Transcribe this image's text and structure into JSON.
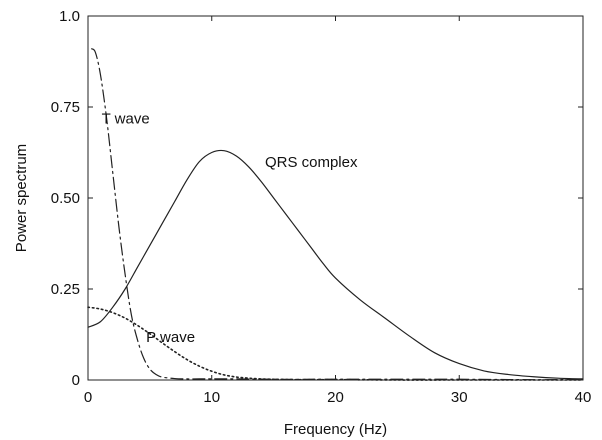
{
  "chart_data": {
    "type": "line",
    "title": "",
    "xlabel": "Frequency (Hz)",
    "ylabel": "Power spectrum",
    "xlim": [
      0,
      40
    ],
    "ylim": [
      0,
      1.0
    ],
    "x_ticks": [
      0,
      10,
      20,
      30,
      40
    ],
    "x_tick_labels": [
      "0",
      "10",
      "20",
      "30",
      "40"
    ],
    "y_ticks": [
      0,
      0.25,
      0.5,
      0.75,
      1.0
    ],
    "y_tick_labels": [
      "0",
      "0.25",
      "0.50",
      "0.75",
      "1.0"
    ],
    "grid": false,
    "series": [
      {
        "name": "QRS complex",
        "style": "solid",
        "color": "#222222",
        "x": [
          0,
          1,
          2,
          3,
          4,
          5,
          6,
          7,
          8,
          9,
          10,
          11,
          12,
          13,
          14,
          15,
          16,
          17,
          18,
          19,
          20,
          22,
          24,
          26,
          28,
          30,
          32,
          34,
          36,
          38,
          40
        ],
        "y": [
          0.145,
          0.16,
          0.2,
          0.25,
          0.31,
          0.37,
          0.43,
          0.49,
          0.55,
          0.6,
          0.625,
          0.63,
          0.615,
          0.585,
          0.545,
          0.5,
          0.455,
          0.41,
          0.365,
          0.32,
          0.28,
          0.22,
          0.17,
          0.12,
          0.075,
          0.045,
          0.025,
          0.015,
          0.009,
          0.005,
          0.003
        ]
      },
      {
        "name": "T wave",
        "style": "dashdot",
        "color": "#222222",
        "x": [
          0.3,
          0.6,
          1,
          1.5,
          2,
          2.5,
          3,
          3.5,
          4,
          4.5,
          5,
          5.5,
          6,
          7,
          8,
          9,
          10,
          12,
          15,
          20,
          25,
          30,
          35,
          40
        ],
        "y": [
          0.91,
          0.9,
          0.84,
          0.72,
          0.57,
          0.42,
          0.29,
          0.18,
          0.11,
          0.06,
          0.03,
          0.015,
          0.008,
          0.004,
          0.003,
          0.003,
          0.003,
          0.003,
          0.002,
          0.002,
          0.002,
          0.002,
          0.001,
          0.001
        ]
      },
      {
        "name": "P wave",
        "style": "dotted",
        "color": "#222222",
        "x": [
          0,
          1,
          2,
          3,
          4,
          5,
          6,
          7,
          8,
          9,
          10,
          11,
          12,
          13,
          14,
          15,
          17,
          20,
          25,
          30,
          35,
          40
        ],
        "y": [
          0.2,
          0.195,
          0.185,
          0.17,
          0.15,
          0.127,
          0.102,
          0.078,
          0.056,
          0.038,
          0.024,
          0.014,
          0.008,
          0.005,
          0.003,
          0.002,
          0.001,
          0.001,
          0.0,
          0.0,
          0.0,
          0.0
        ]
      }
    ],
    "annotations": [
      {
        "text": "T wave",
        "x": 1.1,
        "y": 0.705
      },
      {
        "text": "QRS complex",
        "x": 14.3,
        "y": 0.585
      },
      {
        "text": "P wave",
        "x": 4.7,
        "y": 0.105
      }
    ]
  }
}
